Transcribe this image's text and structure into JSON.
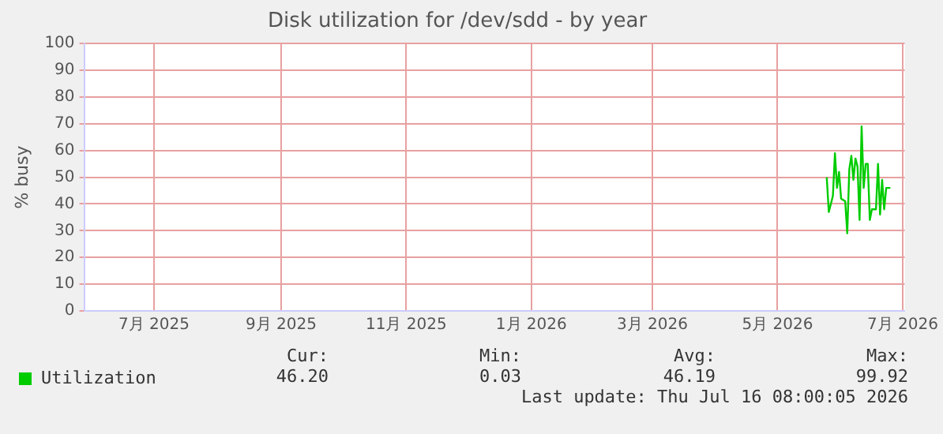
{
  "chart_data": {
    "type": "line",
    "title": "Disk utilization for /dev/sdd - by year",
    "ylabel": "% busy",
    "x": [
      "2026-06-08",
      "2026-06-09",
      "2026-06-11",
      "2026-06-12",
      "2026-06-13",
      "2026-06-14",
      "2026-06-15",
      "2026-06-17",
      "2026-06-18",
      "2026-06-19",
      "2026-06-20",
      "2026-06-21",
      "2026-06-22",
      "2026-06-23",
      "2026-06-24",
      "2026-06-25",
      "2026-06-26",
      "2026-06-27",
      "2026-06-28",
      "2026-06-29",
      "2026-06-30",
      "2026-07-02",
      "2026-07-03",
      "2026-07-04",
      "2026-07-05",
      "2026-07-06",
      "2026-07-07",
      "2026-07-09"
    ],
    "series": [
      {
        "name": "Utilization",
        "color": "#00cc00",
        "values": [
          50,
          37,
          43,
          59,
          46,
          52,
          42,
          41,
          29,
          53,
          58,
          49,
          57,
          54,
          34,
          69,
          46,
          55,
          55,
          34,
          38,
          38,
          55,
          36,
          49,
          38,
          46,
          46
        ]
      }
    ],
    "xlim": [
      "2025-06-11",
      "2026-07-16"
    ],
    "xticks": [
      {
        "value": "2025-07-15",
        "label": "7月 2025"
      },
      {
        "value": "2025-09-15",
        "label": "9月 2025"
      },
      {
        "value": "2025-11-15",
        "label": "11月 2025"
      },
      {
        "value": "2026-01-15",
        "label": "1月 2026"
      },
      {
        "value": "2026-03-15",
        "label": "3月 2026"
      },
      {
        "value": "2026-05-15",
        "label": "5月 2026"
      },
      {
        "value": "2026-07-15",
        "label": "7月 2026"
      }
    ],
    "ylim": [
      0,
      100
    ],
    "yticks": [
      0,
      10,
      20,
      30,
      40,
      50,
      60,
      70,
      80,
      90,
      100
    ],
    "grid": true,
    "legend": "bottom",
    "marker": "none",
    "line_style": "solid",
    "annotations": [
      "Cur:",
      "46.20",
      "Min:",
      "0.03",
      "Avg:",
      "46.19",
      "Max:",
      "99.92",
      "Last update: Thu Jul 16 08:00:05 2026"
    ]
  }
}
